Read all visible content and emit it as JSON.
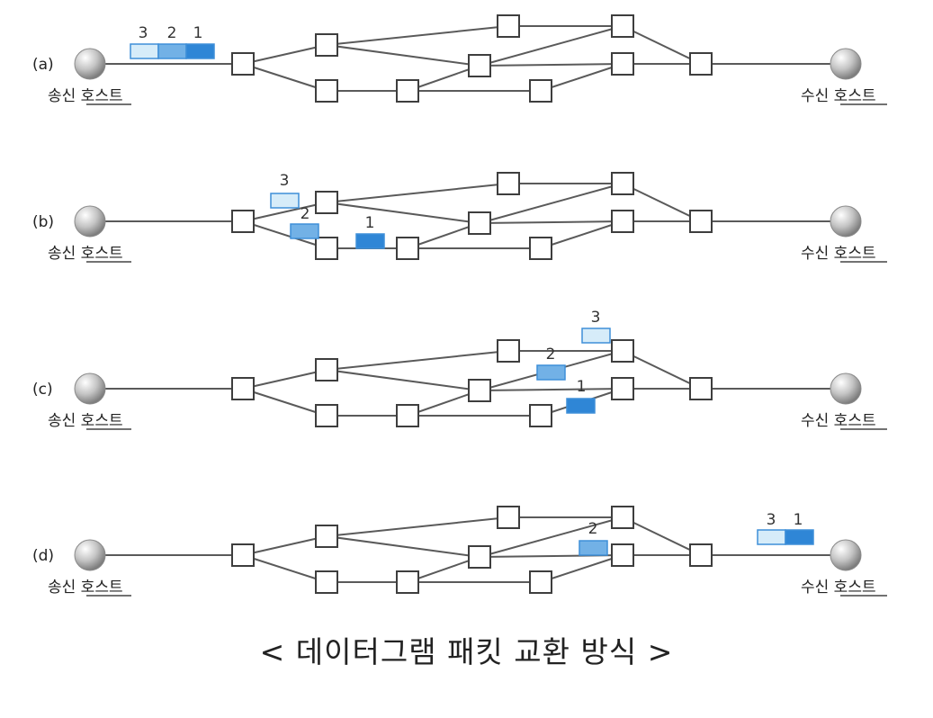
{
  "caption": "< 데이터그램 패킷 교환 방식 >",
  "hosts": {
    "sender": "송신 호스트",
    "receiver": "수신 호스트"
  },
  "colors": {
    "packet1": "#2f86d6",
    "packet2": "#72b1e6",
    "packet3": "#d6ecf9",
    "packetBorder": "#3e8fd8",
    "edge": "#5a5a5a"
  },
  "panels": [
    {
      "label": "(a)",
      "packets": [
        {
          "id": "3",
          "label": "3"
        },
        {
          "id": "2",
          "label": "2"
        },
        {
          "id": "1",
          "label": "1"
        }
      ]
    },
    {
      "label": "(b)",
      "packets": [
        {
          "id": "3",
          "label": "3"
        },
        {
          "id": "2",
          "label": "2"
        },
        {
          "id": "1",
          "label": "1"
        }
      ]
    },
    {
      "label": "(c)",
      "packets": [
        {
          "id": "3",
          "label": "3"
        },
        {
          "id": "2",
          "label": "2"
        },
        {
          "id": "1",
          "label": "1"
        }
      ]
    },
    {
      "label": "(d)",
      "packets": [
        {
          "id": "3",
          "label": "3"
        },
        {
          "id": "1",
          "label": "1"
        },
        {
          "id": "2",
          "label": "2"
        }
      ]
    }
  ]
}
